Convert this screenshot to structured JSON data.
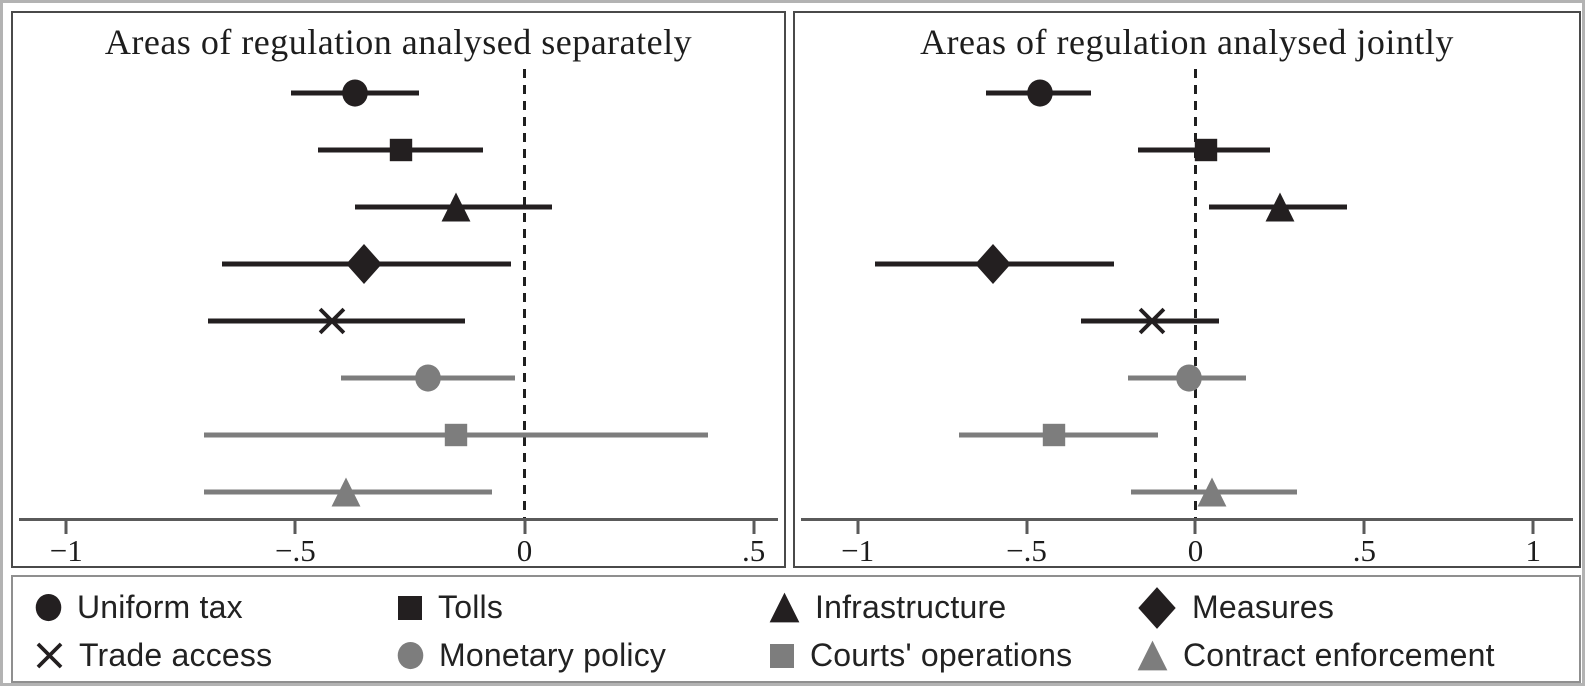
{
  "colors": {
    "black": "#231f20",
    "gray": "#7d7d7d",
    "axis": "#5a5a5a",
    "zero_line": "#1f1f1f"
  },
  "chart_data": [
    {
      "type": "scatter",
      "subtype": "forest-plot-dot-with-ci",
      "title": "Areas of regulation analysed separately",
      "xlim": [
        -1.09,
        0.54
      ],
      "zero_reference": 0,
      "grid": false,
      "x_ticks": [
        {
          "value": -1,
          "label": "−1"
        },
        {
          "value": -0.5,
          "label": "−.5"
        },
        {
          "value": 0,
          "label": "0"
        },
        {
          "value": 0.5,
          "label": ".5"
        }
      ],
      "rows": [
        {
          "label": "Uniform tax",
          "marker": "circle",
          "color_key": "black",
          "estimate": -0.37,
          "ci_low": -0.51,
          "ci_high": -0.23
        },
        {
          "label": "Tolls",
          "marker": "square",
          "color_key": "black",
          "estimate": -0.27,
          "ci_low": -0.45,
          "ci_high": -0.09
        },
        {
          "label": "Infrastructure",
          "marker": "triangle",
          "color_key": "black",
          "estimate": -0.15,
          "ci_low": -0.37,
          "ci_high": 0.06
        },
        {
          "label": "Measures",
          "marker": "diamond",
          "color_key": "black",
          "estimate": -0.35,
          "ci_low": -0.66,
          "ci_high": -0.03
        },
        {
          "label": "Trade access",
          "marker": "x",
          "color_key": "black",
          "estimate": -0.42,
          "ci_low": -0.69,
          "ci_high": -0.13
        },
        {
          "label": "Monetary policy",
          "marker": "circle",
          "color_key": "gray",
          "estimate": -0.21,
          "ci_low": -0.4,
          "ci_high": -0.02
        },
        {
          "label": "Courts' operations",
          "marker": "square",
          "color_key": "gray",
          "estimate": -0.15,
          "ci_low": -0.7,
          "ci_high": 0.4
        },
        {
          "label": "Contract enforcement",
          "marker": "triangle",
          "color_key": "gray",
          "estimate": -0.39,
          "ci_low": -0.7,
          "ci_high": -0.07
        }
      ]
    },
    {
      "type": "scatter",
      "subtype": "forest-plot-dot-with-ci",
      "title": "Areas of regulation analysed jointly",
      "xlim": [
        -1.15,
        1.1
      ],
      "zero_reference": 0,
      "grid": false,
      "x_ticks": [
        {
          "value": -1,
          "label": "−1"
        },
        {
          "value": -0.5,
          "label": "−.5"
        },
        {
          "value": 0,
          "label": "0"
        },
        {
          "value": 0.5,
          "label": ".5"
        },
        {
          "value": 1,
          "label": "1"
        }
      ],
      "rows": [
        {
          "label": "Uniform tax",
          "marker": "circle",
          "color_key": "black",
          "estimate": -0.46,
          "ci_low": -0.62,
          "ci_high": -0.31
        },
        {
          "label": "Tolls",
          "marker": "square",
          "color_key": "black",
          "estimate": 0.03,
          "ci_low": -0.17,
          "ci_high": 0.22
        },
        {
          "label": "Infrastructure",
          "marker": "triangle",
          "color_key": "black",
          "estimate": 0.25,
          "ci_low": 0.04,
          "ci_high": 0.45
        },
        {
          "label": "Measures",
          "marker": "diamond",
          "color_key": "black",
          "estimate": -0.6,
          "ci_low": -0.95,
          "ci_high": -0.24
        },
        {
          "label": "Trade access",
          "marker": "x",
          "color_key": "black",
          "estimate": -0.13,
          "ci_low": -0.34,
          "ci_high": 0.07
        },
        {
          "label": "Monetary policy",
          "marker": "circle",
          "color_key": "gray",
          "estimate": -0.02,
          "ci_low": -0.2,
          "ci_high": 0.15
        },
        {
          "label": "Courts' operations",
          "marker": "square",
          "color_key": "gray",
          "estimate": -0.42,
          "ci_low": -0.7,
          "ci_high": -0.11
        },
        {
          "label": "Contract enforcement",
          "marker": "triangle",
          "color_key": "gray",
          "estimate": 0.05,
          "ci_low": -0.19,
          "ci_high": 0.3
        }
      ]
    }
  ],
  "legend": {
    "items": [
      {
        "label": "Uniform tax",
        "marker": "circle",
        "color_key": "black"
      },
      {
        "label": "Tolls",
        "marker": "square",
        "color_key": "black"
      },
      {
        "label": "Infrastructure",
        "marker": "triangle",
        "color_key": "black"
      },
      {
        "label": "Measures",
        "marker": "diamond",
        "color_key": "black"
      },
      {
        "label": "Trade access",
        "marker": "x",
        "color_key": "black"
      },
      {
        "label": "Monetary policy",
        "marker": "circle",
        "color_key": "gray"
      },
      {
        "label": "Courts' operations",
        "marker": "square",
        "color_key": "gray"
      },
      {
        "label": "Contract enforcement",
        "marker": "triangle",
        "color_key": "gray"
      }
    ]
  }
}
